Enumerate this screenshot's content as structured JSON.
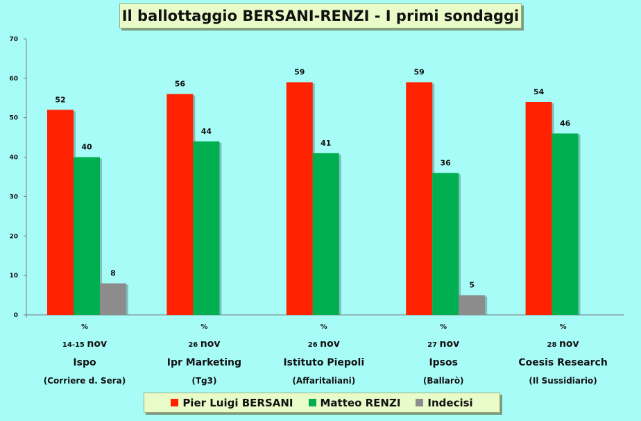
{
  "chart_data": {
    "type": "bar",
    "title": "Il ballottaggio BERSANI-RENZI - I primi sondaggi",
    "ylim": [
      0,
      70
    ],
    "yticks": [
      0,
      10,
      20,
      30,
      40,
      50,
      60,
      70
    ],
    "unit_label": "%",
    "grid": false,
    "legend_position": "bottom",
    "categories": [
      {
        "date": "14-15 nov",
        "institute": "Ispo",
        "client": "(Corriere d. Sera)"
      },
      {
        "date": "26 nov",
        "institute": "Ipr Marketing",
        "client": "(Tg3)"
      },
      {
        "date": "26 nov",
        "institute": "Istituto Piepoli",
        "client": "(Affaritaliani)"
      },
      {
        "date": "27 nov",
        "institute": "Ipsos",
        "client": "(Ballarò)"
      },
      {
        "date": "28 nov",
        "institute": "Coesis Research",
        "client": "(Il Sussidiario)"
      }
    ],
    "series": [
      {
        "name": "Pier Luigi BERSANI",
        "color": "#ff2200",
        "values": [
          52,
          56,
          59,
          59,
          54
        ]
      },
      {
        "name": "Matteo RENZI",
        "color": "#00b050",
        "values": [
          40,
          44,
          41,
          36,
          46
        ]
      },
      {
        "name": "Indecisi",
        "color": "#8c8c8c",
        "values": [
          8,
          null,
          null,
          5,
          null
        ]
      }
    ]
  }
}
